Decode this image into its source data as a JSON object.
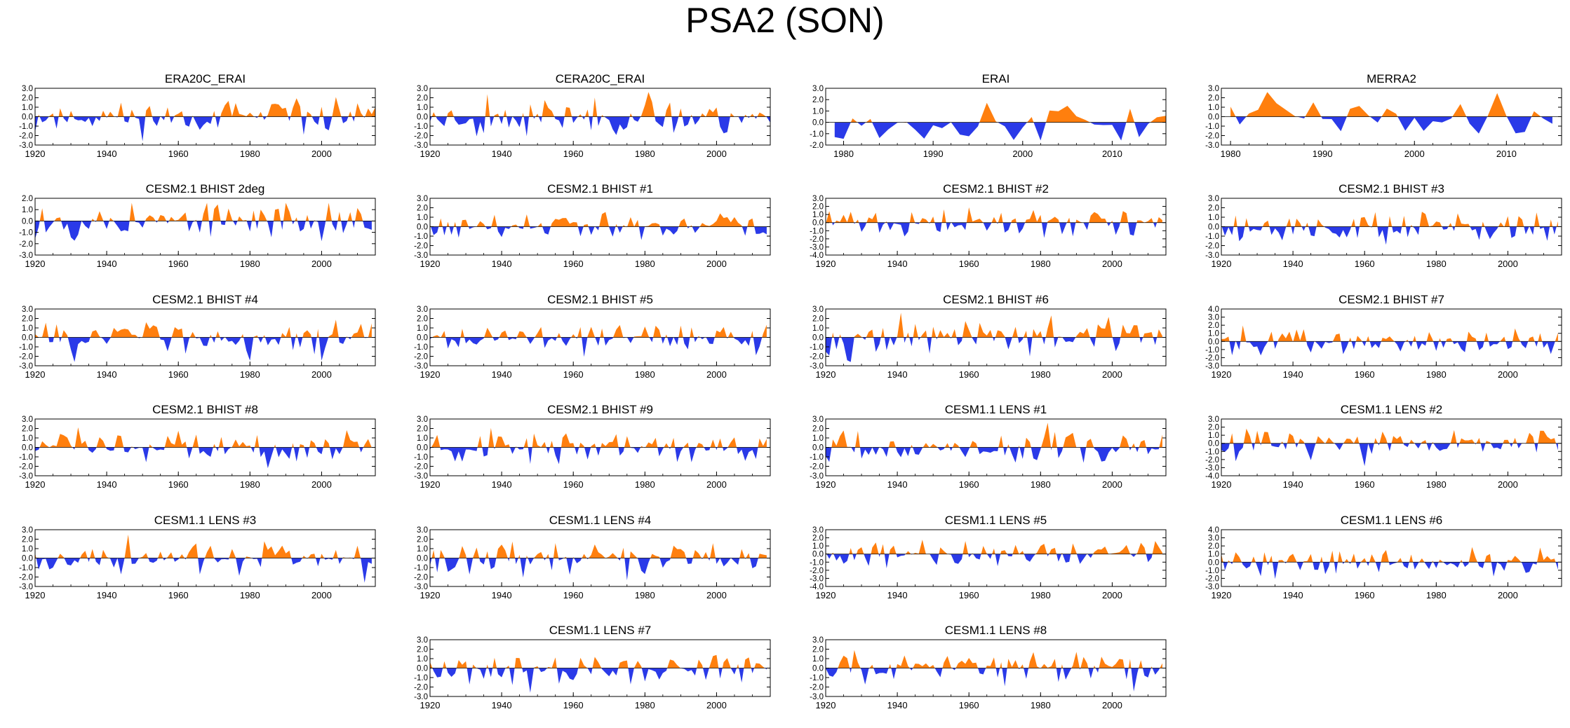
{
  "title": "PSA2 (SON)",
  "colors": {
    "positive": "#ff7f0e",
    "negative": "#2a3ae8",
    "frame": "#000000"
  },
  "chart_data": [
    {
      "type": "area",
      "title": "ERA20C_ERAI",
      "xlim": [
        1920,
        2015
      ],
      "xticks": [
        1920,
        1940,
        1960,
        1980,
        2000
      ],
      "ylim": [
        -3,
        3
      ],
      "yticks": [
        3,
        2,
        1,
        0,
        -1,
        -2,
        -3
      ],
      "yticklabels": [
        "3.0",
        "2.0",
        "1.0",
        "0.0",
        "-1.0",
        "-2.0",
        "-3.0"
      ],
      "x": [
        1920,
        2015
      ],
      "seed": 11,
      "amp": 1.0
    },
    {
      "type": "area",
      "title": "CERA20C_ERAI",
      "xlim": [
        1920,
        2015
      ],
      "xticks": [
        1920,
        1940,
        1960,
        1980,
        2000
      ],
      "ylim": [
        -3,
        3
      ],
      "yticks": [
        3,
        2,
        1,
        0,
        -1,
        -2,
        -3
      ],
      "yticklabels": [
        "3.0",
        "2.0",
        "1.0",
        "0.0",
        "-1.0",
        "-2.0",
        "-3.0"
      ],
      "x": [
        1920,
        2015
      ],
      "seed": 23,
      "amp": 1.1
    },
    {
      "type": "area",
      "title": "ERAI",
      "xlim": [
        1978,
        2016
      ],
      "xticks": [
        1980,
        1990,
        2000,
        2010
      ],
      "ylim": [
        -2,
        3
      ],
      "yticks": [
        3,
        2,
        1,
        0,
        -1,
        -2
      ],
      "yticklabels": [
        "3.0",
        "2.0",
        "1.0",
        "0.0",
        "-1.0",
        "-2.0"
      ],
      "x": [
        1979,
        2016
      ],
      "seed": 37,
      "amp": 1.1
    },
    {
      "type": "area",
      "title": "MERRA2",
      "xlim": [
        1979,
        2016
      ],
      "xticks": [
        1980,
        1990,
        2000,
        2010
      ],
      "ylim": [
        -3,
        3
      ],
      "yticks": [
        3,
        2,
        1,
        0,
        -1,
        -2,
        -3
      ],
      "yticklabels": [
        "3.0",
        "2.0",
        "1.0",
        "0.0",
        "-1.0",
        "-2.0",
        "-3.0"
      ],
      "x": [
        1980,
        2015
      ],
      "seed": 41,
      "amp": 1.1
    },
    {
      "type": "area",
      "title": "CESM2.1 BHIST 2deg",
      "xlim": [
        1920,
        2015
      ],
      "xticks": [
        1920,
        1940,
        1960,
        1980,
        2000
      ],
      "ylim": [
        -3,
        2
      ],
      "yticks": [
        2,
        1,
        0,
        -1,
        -2,
        -3
      ],
      "yticklabels": [
        "2.0",
        "1.0",
        "0.0",
        "-1.0",
        "-2.0",
        "-3.0"
      ],
      "x": [
        1920,
        2014
      ],
      "seed": 53,
      "amp": 1.0
    },
    {
      "type": "area",
      "title": "CESM2.1 BHIST #1",
      "xlim": [
        1920,
        2015
      ],
      "xticks": [
        1920,
        1940,
        1960,
        1980,
        2000
      ],
      "ylim": [
        -3,
        3
      ],
      "yticks": [
        3,
        2,
        1,
        0,
        -1,
        -2,
        -3
      ],
      "yticklabels": [
        "3.0",
        "2.0",
        "1.0",
        "0.0",
        "-1.0",
        "-2.0",
        "-3.0"
      ],
      "x": [
        1920,
        2014
      ],
      "seed": 61,
      "amp": 1.0
    },
    {
      "type": "area",
      "title": "CESM2.1 BHIST #2",
      "xlim": [
        1920,
        2015
      ],
      "xticks": [
        1920,
        1940,
        1960,
        1980,
        2000
      ],
      "ylim": [
        -4,
        3
      ],
      "yticks": [
        3,
        2,
        1,
        0,
        -1,
        -2,
        -3,
        -4
      ],
      "yticklabels": [
        "3.0",
        "2.0",
        "1.0",
        "0.0",
        "-1.0",
        "-2.0",
        "-3.0",
        "-4.0"
      ],
      "x": [
        1920,
        2014
      ],
      "seed": 71,
      "amp": 1.1
    },
    {
      "type": "area",
      "title": "CESM2.1 BHIST #3",
      "xlim": [
        1920,
        2015
      ],
      "xticks": [
        1920,
        1940,
        1960,
        1980,
        2000
      ],
      "ylim": [
        -3,
        3
      ],
      "yticks": [
        3,
        2,
        1,
        0,
        -1,
        -2,
        -3
      ],
      "yticklabels": [
        "3.0",
        "2.0",
        "1.0",
        "0.0",
        "-1.0",
        "-2.0",
        "-3.0"
      ],
      "x": [
        1920,
        2014
      ],
      "seed": 79,
      "amp": 1.0
    },
    {
      "type": "area",
      "title": "CESM2.1 BHIST #4",
      "xlim": [
        1920,
        2015
      ],
      "xticks": [
        1920,
        1940,
        1960,
        1980,
        2000
      ],
      "ylim": [
        -3,
        3
      ],
      "yticks": [
        3,
        2,
        1,
        0,
        -1,
        -2,
        -3
      ],
      "yticklabels": [
        "3.0",
        "2.0",
        "1.0",
        "0.0",
        "-1.0",
        "-2.0",
        "-3.0"
      ],
      "x": [
        1920,
        2014
      ],
      "seed": 83,
      "amp": 1.0
    },
    {
      "type": "area",
      "title": "CESM2.1 BHIST #5",
      "xlim": [
        1920,
        2015
      ],
      "xticks": [
        1920,
        1940,
        1960,
        1980,
        2000
      ],
      "ylim": [
        -3,
        3
      ],
      "yticks": [
        3,
        2,
        1,
        0,
        -1,
        -2,
        -3
      ],
      "yticklabels": [
        "3.0",
        "2.0",
        "1.0",
        "0.0",
        "-1.0",
        "-2.0",
        "-3.0"
      ],
      "x": [
        1920,
        2014
      ],
      "seed": 89,
      "amp": 1.0
    },
    {
      "type": "area",
      "title": "CESM2.1 BHIST #6",
      "xlim": [
        1920,
        2015
      ],
      "xticks": [
        1920,
        1940,
        1960,
        1980,
        2000
      ],
      "ylim": [
        -3,
        3
      ],
      "yticks": [
        3,
        2,
        1,
        0,
        -1,
        -2,
        -3
      ],
      "yticklabels": [
        "3.0",
        "2.0",
        "1.0",
        "0.0",
        "-1.0",
        "-2.0",
        "-3.0"
      ],
      "x": [
        1920,
        2014
      ],
      "seed": 97,
      "amp": 1.1
    },
    {
      "type": "area",
      "title": "CESM2.1 BHIST #7",
      "xlim": [
        1920,
        2015
      ],
      "xticks": [
        1920,
        1940,
        1960,
        1980,
        2000
      ],
      "ylim": [
        -3,
        4
      ],
      "yticks": [
        4,
        3,
        2,
        1,
        0,
        -1,
        -2,
        -3
      ],
      "yticklabels": [
        "4.0",
        "3.0",
        "2.0",
        "1.0",
        "0.0",
        "-1.0",
        "-2.0",
        "-3.0"
      ],
      "x": [
        1920,
        2014
      ],
      "seed": 101,
      "amp": 1.0
    },
    {
      "type": "area",
      "title": "CESM2.1 BHIST #8",
      "xlim": [
        1920,
        2015
      ],
      "xticks": [
        1920,
        1940,
        1960,
        1980,
        2000
      ],
      "ylim": [
        -3,
        3
      ],
      "yticks": [
        3,
        2,
        1,
        0,
        -1,
        -2,
        -3
      ],
      "yticklabels": [
        "3.0",
        "2.0",
        "1.0",
        "0.0",
        "-1.0",
        "-2.0",
        "-3.0"
      ],
      "x": [
        1920,
        2014
      ],
      "seed": 103,
      "amp": 1.0
    },
    {
      "type": "area",
      "title": "CESM2.1 BHIST #9",
      "xlim": [
        1920,
        2015
      ],
      "xticks": [
        1920,
        1940,
        1960,
        1980,
        2000
      ],
      "ylim": [
        -3,
        3
      ],
      "yticks": [
        3,
        2,
        1,
        0,
        -1,
        -2,
        -3
      ],
      "yticklabels": [
        "3.0",
        "2.0",
        "1.0",
        "0.0",
        "-1.0",
        "-2.0",
        "-3.0"
      ],
      "x": [
        1920,
        2014
      ],
      "seed": 107,
      "amp": 1.0
    },
    {
      "type": "area",
      "title": "CESM1.1 LENS #1",
      "xlim": [
        1920,
        2015
      ],
      "xticks": [
        1920,
        1940,
        1960,
        1980,
        2000
      ],
      "ylim": [
        -3,
        3
      ],
      "yticks": [
        3,
        2,
        1,
        0,
        -1,
        -2,
        -3
      ],
      "yticklabels": [
        "3.0",
        "2.0",
        "1.0",
        "0.0",
        "-1.0",
        "-2.0",
        "-3.0"
      ],
      "x": [
        1920,
        2014
      ],
      "seed": 109,
      "amp": 1.0
    },
    {
      "type": "area",
      "title": "CESM1.1 LENS #2",
      "xlim": [
        1920,
        2015
      ],
      "xticks": [
        1920,
        1940,
        1960,
        1980,
        2000
      ],
      "ylim": [
        -4,
        3
      ],
      "yticks": [
        3,
        2,
        1,
        0,
        -1,
        -2,
        -3,
        -4
      ],
      "yticklabels": [
        "3.0",
        "2.0",
        "1.0",
        "0.0",
        "-1.0",
        "-2.0",
        "-3.0",
        "-4.0"
      ],
      "x": [
        1920,
        2014
      ],
      "seed": 113,
      "amp": 1.1
    },
    {
      "type": "area",
      "title": "CESM1.1 LENS #3",
      "xlim": [
        1920,
        2015
      ],
      "xticks": [
        1920,
        1940,
        1960,
        1980,
        2000
      ],
      "ylim": [
        -3,
        3
      ],
      "yticks": [
        3,
        2,
        1,
        0,
        -1,
        -2,
        -3
      ],
      "yticklabels": [
        "3.0",
        "2.0",
        "1.0",
        "0.0",
        "-1.0",
        "-2.0",
        "-3.0"
      ],
      "x": [
        1920,
        2014
      ],
      "seed": 127,
      "amp": 1.0
    },
    {
      "type": "area",
      "title": "CESM1.1 LENS #4",
      "xlim": [
        1920,
        2015
      ],
      "xticks": [
        1920,
        1940,
        1960,
        1980,
        2000
      ],
      "ylim": [
        -3,
        3
      ],
      "yticks": [
        3,
        2,
        1,
        0,
        -1,
        -2,
        -3
      ],
      "yticklabels": [
        "3.0",
        "2.0",
        "1.0",
        "0.0",
        "-1.0",
        "-2.0",
        "-3.0"
      ],
      "x": [
        1920,
        2014
      ],
      "seed": 131,
      "amp": 1.0
    },
    {
      "type": "area",
      "title": "CESM1.1 LENS #5",
      "xlim": [
        1920,
        2015
      ],
      "xticks": [
        1920,
        1940,
        1960,
        1980,
        2000
      ],
      "ylim": [
        -4,
        3
      ],
      "yticks": [
        3,
        2,
        1,
        0,
        -1,
        -2,
        -3,
        -4
      ],
      "yticklabels": [
        "3.0",
        "2.0",
        "1.0",
        "0.0",
        "-1.0",
        "-2.0",
        "-3.0",
        "-4.0"
      ],
      "x": [
        1920,
        2014
      ],
      "seed": 137,
      "amp": 1.1
    },
    {
      "type": "area",
      "title": "CESM1.1 LENS #6",
      "xlim": [
        1920,
        2015
      ],
      "xticks": [
        1920,
        1940,
        1960,
        1980,
        2000
      ],
      "ylim": [
        -3,
        4
      ],
      "yticks": [
        4,
        3,
        2,
        1,
        0,
        -1,
        -2,
        -3
      ],
      "yticklabels": [
        "4.0",
        "3.0",
        "2.0",
        "1.0",
        "0.0",
        "-1.0",
        "-2.0",
        "-3.0"
      ],
      "x": [
        1920,
        2014
      ],
      "seed": 139,
      "amp": 1.0
    },
    {
      "type": "area",
      "title": "CESM1.1 LENS #7",
      "xlim": [
        1920,
        2015
      ],
      "xticks": [
        1920,
        1940,
        1960,
        1980,
        2000
      ],
      "ylim": [
        -3,
        3
      ],
      "yticks": [
        3,
        2,
        1,
        0,
        -1,
        -2,
        -3
      ],
      "yticklabels": [
        "3.0",
        "2.0",
        "1.0",
        "0.0",
        "-1.0",
        "-2.0",
        "-3.0"
      ],
      "x": [
        1920,
        2014
      ],
      "seed": 149,
      "amp": 1.0
    },
    {
      "type": "area",
      "title": "CESM1.1 LENS #8",
      "xlim": [
        1920,
        2015
      ],
      "xticks": [
        1920,
        1940,
        1960,
        1980,
        2000
      ],
      "ylim": [
        -3,
        3
      ],
      "yticks": [
        3,
        2,
        1,
        0,
        -1,
        -2,
        -3
      ],
      "yticklabels": [
        "3.0",
        "2.0",
        "1.0",
        "0.0",
        "-1.0",
        "-2.0",
        "-3.0"
      ],
      "x": [
        1920,
        2014
      ],
      "seed": 151,
      "amp": 1.0
    }
  ]
}
